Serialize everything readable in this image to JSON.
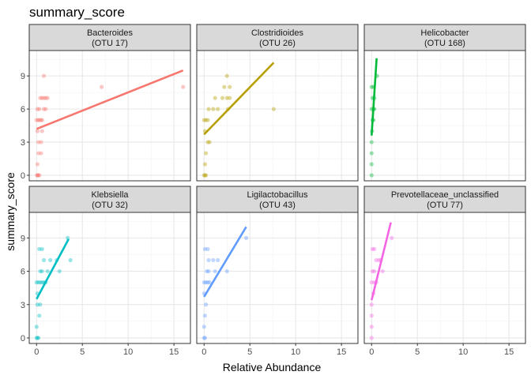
{
  "chart_data": {
    "type": "scatter",
    "title": "summary_score",
    "xlabel": "Relative Abundance",
    "ylabel": "summary_score",
    "xlim": [
      -0.8,
      16.8
    ],
    "ylim": [
      -0.5,
      11.3
    ],
    "x_ticks": [
      0,
      5,
      10,
      15
    ],
    "y_ticks": [
      0,
      3,
      6,
      9
    ],
    "grid": true,
    "legend": "none",
    "facets": [
      {
        "strip_line1": "Bacteroides",
        "strip_line2": "(OTU 17)",
        "color": "#F8766D",
        "trend": {
          "x0": 0.0,
          "y0": 4.2,
          "x1": 16.0,
          "y1": 9.5
        },
        "points": [
          [
            0.05,
            0
          ],
          [
            0.1,
            0
          ],
          [
            0.2,
            0
          ],
          [
            0.3,
            0
          ],
          [
            0.1,
            1
          ],
          [
            0.2,
            2
          ],
          [
            0.5,
            2
          ],
          [
            0.2,
            3
          ],
          [
            0.5,
            3
          ],
          [
            0.1,
            4
          ],
          [
            0.6,
            4
          ],
          [
            0.0,
            5
          ],
          [
            0.2,
            5
          ],
          [
            0.3,
            5
          ],
          [
            0.5,
            5
          ],
          [
            0.6,
            5
          ],
          [
            0.1,
            6
          ],
          [
            0.3,
            6
          ],
          [
            0.8,
            6
          ],
          [
            1.0,
            6
          ],
          [
            0.4,
            7
          ],
          [
            0.6,
            7
          ],
          [
            0.8,
            7
          ],
          [
            1.0,
            7
          ],
          [
            1.2,
            7
          ],
          [
            0.8,
            9
          ],
          [
            7.1,
            8
          ],
          [
            16.0,
            8
          ]
        ]
      },
      {
        "strip_line1": "Clostridioides",
        "strip_line2": "(OTU 26)",
        "color": "#B79F00",
        "trend": {
          "x0": 0.0,
          "y0": 3.7,
          "x1": 7.6,
          "y1": 10.2
        },
        "points": [
          [
            0.0,
            0
          ],
          [
            0.1,
            0
          ],
          [
            0.2,
            0
          ],
          [
            0.1,
            1
          ],
          [
            0.2,
            2
          ],
          [
            0.4,
            3
          ],
          [
            0.6,
            3
          ],
          [
            0.1,
            4
          ],
          [
            0.0,
            5
          ],
          [
            0.2,
            5
          ],
          [
            0.4,
            5
          ],
          [
            0.5,
            6
          ],
          [
            1.0,
            6
          ],
          [
            1.2,
            7
          ],
          [
            2.0,
            7
          ],
          [
            2.5,
            7
          ],
          [
            2.8,
            7
          ],
          [
            2.6,
            6
          ],
          [
            1.5,
            6
          ],
          [
            2.2,
            8
          ],
          [
            2.8,
            8
          ],
          [
            2.5,
            9
          ],
          [
            7.6,
            6
          ]
        ]
      },
      {
        "strip_line1": "Helicobacter",
        "strip_line2": "(OTU 168)",
        "color": "#00BA38",
        "trend": {
          "x0": 0.0,
          "y0": 3.6,
          "x1": 0.55,
          "y1": 10.6
        },
        "points": [
          [
            0.0,
            0
          ],
          [
            0.0,
            1
          ],
          [
            0.0,
            2
          ],
          [
            0.0,
            3
          ],
          [
            0.05,
            4
          ],
          [
            0.1,
            5
          ],
          [
            0.2,
            5
          ],
          [
            0.0,
            6
          ],
          [
            0.2,
            6
          ],
          [
            0.3,
            6
          ],
          [
            0.1,
            7
          ],
          [
            0.3,
            7
          ],
          [
            0.0,
            8
          ],
          [
            0.2,
            8
          ],
          [
            0.6,
            9
          ]
        ]
      },
      {
        "strip_line1": "Klebsiella",
        "strip_line2": "(OTU 32)",
        "color": "#00BFC4",
        "trend": {
          "x0": 0.0,
          "y0": 3.5,
          "x1": 3.5,
          "y1": 8.9
        },
        "points": [
          [
            0.0,
            0
          ],
          [
            0.1,
            0
          ],
          [
            0.2,
            0
          ],
          [
            0.0,
            1
          ],
          [
            0.3,
            2
          ],
          [
            0.1,
            3
          ],
          [
            0.4,
            3
          ],
          [
            0.1,
            4
          ],
          [
            0.0,
            5
          ],
          [
            0.2,
            5
          ],
          [
            0.4,
            5
          ],
          [
            0.6,
            5
          ],
          [
            0.8,
            5
          ],
          [
            1.0,
            5
          ],
          [
            0.4,
            6
          ],
          [
            0.6,
            6
          ],
          [
            1.2,
            6
          ],
          [
            2.5,
            6
          ],
          [
            0.8,
            7
          ],
          [
            1.5,
            7
          ],
          [
            2.2,
            7
          ],
          [
            3.7,
            7
          ],
          [
            0.3,
            8
          ],
          [
            0.6,
            8
          ],
          [
            3.4,
            9
          ]
        ]
      },
      {
        "strip_line1": "Ligilactobacillus",
        "strip_line2": "(OTU 43)",
        "color": "#619CFF",
        "trend": {
          "x0": 0.0,
          "y0": 3.7,
          "x1": 4.6,
          "y1": 10.0
        },
        "points": [
          [
            0.0,
            0
          ],
          [
            0.1,
            0
          ],
          [
            0.0,
            1
          ],
          [
            0.1,
            2
          ],
          [
            0.2,
            3
          ],
          [
            0.0,
            4
          ],
          [
            0.0,
            5
          ],
          [
            0.2,
            5
          ],
          [
            0.4,
            5
          ],
          [
            0.6,
            5
          ],
          [
            0.3,
            6
          ],
          [
            0.5,
            6
          ],
          [
            1.2,
            6
          ],
          [
            2.5,
            6
          ],
          [
            0.5,
            7
          ],
          [
            1.0,
            7
          ],
          [
            1.5,
            7
          ],
          [
            0.1,
            8
          ],
          [
            0.4,
            8
          ],
          [
            4.6,
            9
          ]
        ]
      },
      {
        "strip_line1": "Prevotellaceae_unclassified",
        "strip_line2": "(OTU 77)",
        "color": "#F564E3",
        "trend": {
          "x0": 0.0,
          "y0": 3.4,
          "x1": 2.1,
          "y1": 10.4
        },
        "points": [
          [
            0.0,
            0
          ],
          [
            0.0,
            1
          ],
          [
            0.0,
            2
          ],
          [
            0.0,
            3
          ],
          [
            0.2,
            4
          ],
          [
            0.0,
            5
          ],
          [
            0.3,
            5
          ],
          [
            0.5,
            5
          ],
          [
            0.1,
            6
          ],
          [
            0.3,
            6
          ],
          [
            1.2,
            6
          ],
          [
            0.5,
            7
          ],
          [
            0.8,
            7
          ],
          [
            1.0,
            7
          ],
          [
            0.1,
            8
          ],
          [
            0.3,
            8
          ],
          [
            2.2,
            9
          ]
        ]
      }
    ]
  }
}
